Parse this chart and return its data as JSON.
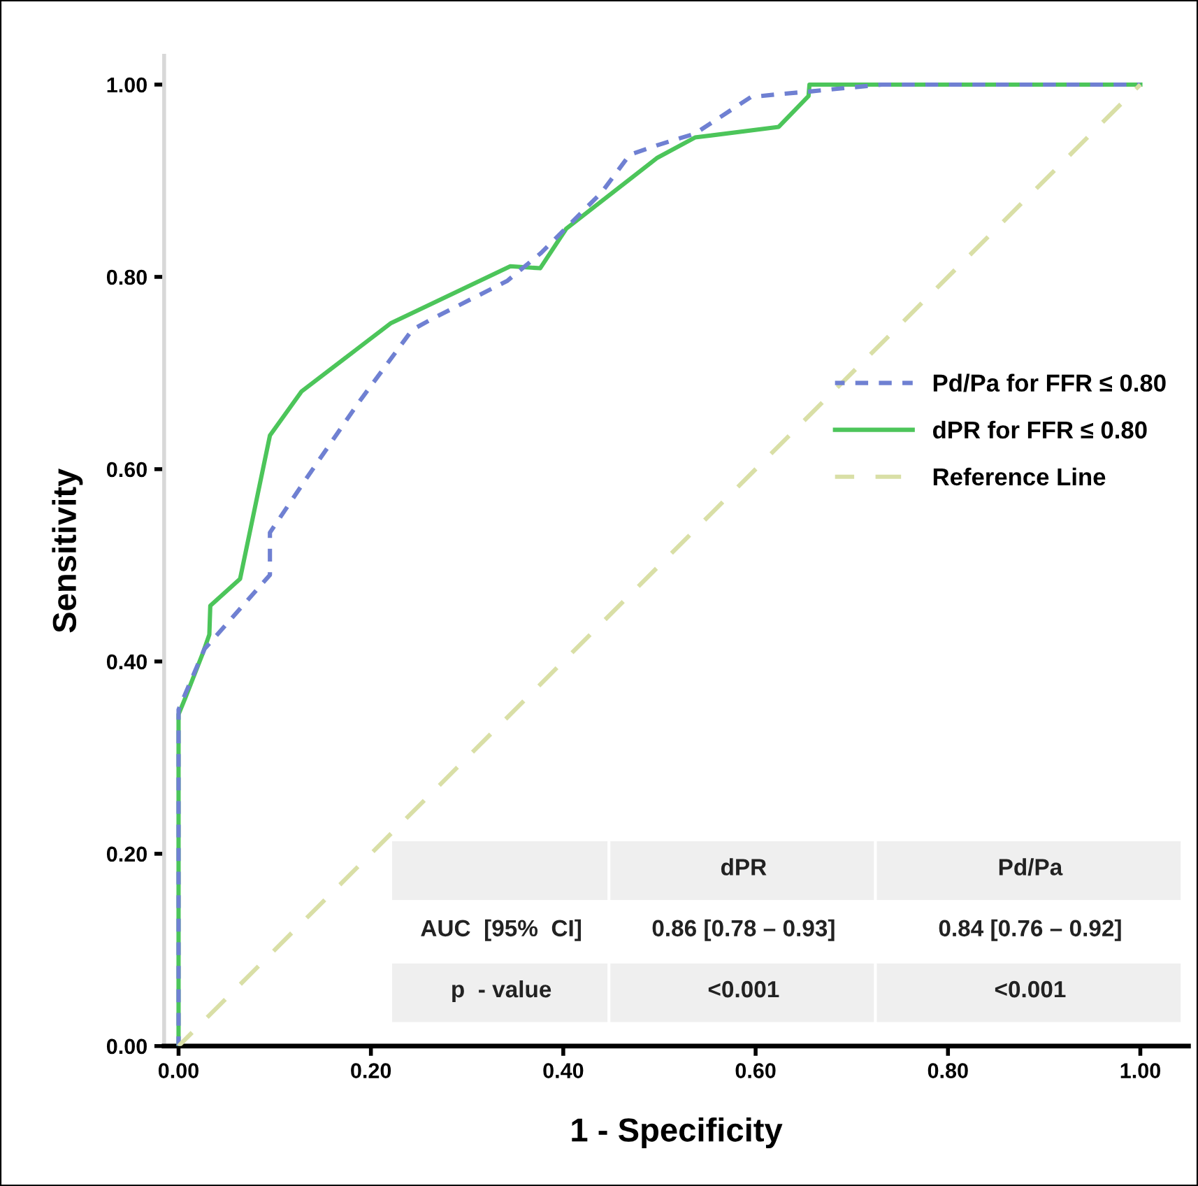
{
  "chart_data": {
    "type": "line",
    "xlabel": "1 - Specificity",
    "ylabel": "Sensitivity",
    "xlim": [
      -0.015,
      1.05
    ],
    "ylim": [
      0,
      1.03
    ],
    "xticks": [
      {
        "value": 0,
        "label": "0.00"
      },
      {
        "value": 0.2,
        "label": "0.20"
      },
      {
        "value": 0.4,
        "label": "0.40"
      },
      {
        "value": 0.6,
        "label": "0.60"
      },
      {
        "value": 0.8,
        "label": "0.80"
      },
      {
        "value": 1,
        "label": "1.00"
      }
    ],
    "yticks": [
      {
        "value": 0,
        "label": "0.00"
      },
      {
        "value": 0.2,
        "label": "0.20"
      },
      {
        "value": 0.4,
        "label": "0.40"
      },
      {
        "value": 0.6,
        "label": "0.60"
      },
      {
        "value": 0.8,
        "label": "0.80"
      },
      {
        "value": 1,
        "label": "1.00"
      }
    ],
    "grid": false,
    "legend": "right",
    "marker": "none",
    "series": [
      {
        "name": "Pd/Pa for FFR ≤ 0.80",
        "color": "#6f80d2",
        "line_style": "dotted",
        "x": [
          0,
          0,
          0.027,
          0.095,
          0.095,
          0.134,
          0.187,
          0.243,
          0.265,
          0.342,
          0.377,
          0.44,
          0.469,
          0.498,
          0.537,
          0.595,
          0.624,
          0.658,
          0.731,
          1
        ],
        "values": [
          0,
          0.35,
          0.413,
          0.49,
          0.534,
          0.592,
          0.669,
          0.745,
          0.757,
          0.796,
          0.825,
          0.888,
          0.927,
          0.937,
          0.949,
          0.987,
          0.99,
          0.993,
          1,
          1
        ]
      },
      {
        "name": "dPR for FFR ≤ 0.80",
        "color": "#4cc55a",
        "line_style": "solid",
        "x": [
          0,
          0,
          0.007,
          0.025,
          0.032,
          0.033,
          0.064,
          0.095,
          0.128,
          0.221,
          0.345,
          0.376,
          0.403,
          0.498,
          0.537,
          0.624,
          0.655,
          0.656,
          1
        ],
        "values": [
          0,
          0.345,
          0.362,
          0.408,
          0.428,
          0.458,
          0.486,
          0.635,
          0.681,
          0.752,
          0.811,
          0.809,
          0.85,
          0.924,
          0.945,
          0.956,
          0.988,
          1,
          1
        ]
      },
      {
        "name": "Reference Line",
        "color": "#d9dfa6",
        "line_style": "dashed",
        "x": [
          0,
          1
        ],
        "values": [
          0,
          1
        ]
      }
    ],
    "annotations": [
      "dPR",
      "Pd/Pa",
      "AUC  [95%  CI]",
      "0.86 [0.78 – 0.93]",
      "0.84 [0.76 – 0.92]",
      "p  - value",
      "<0.001",
      "<0.001"
    ]
  }
}
